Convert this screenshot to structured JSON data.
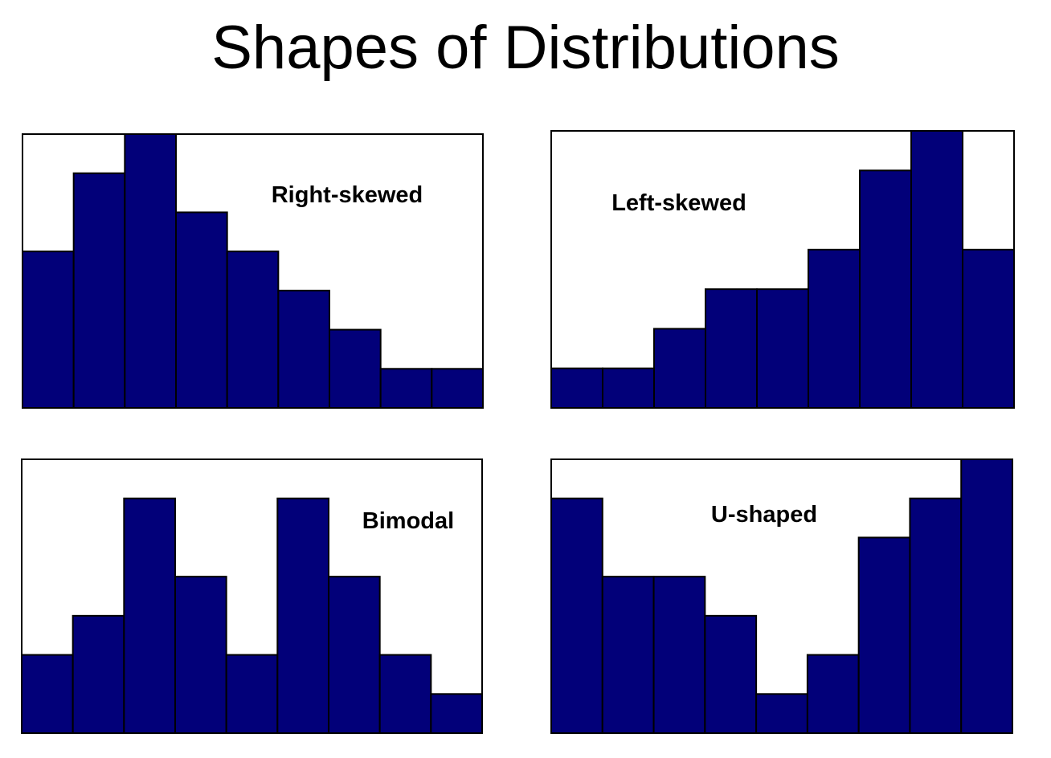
{
  "title": "Shapes of Distributions",
  "colors": {
    "bar_fill": "#020079",
    "bar_stroke": "#000000",
    "frame_stroke": "#000000",
    "background": "#ffffff"
  },
  "chart_data": [
    {
      "type": "bar",
      "label": "Right-skewed",
      "values": [
        4,
        6,
        7,
        5,
        4,
        3,
        2,
        1,
        1
      ],
      "ylim": [
        0,
        7
      ],
      "grid": false,
      "legend": "none"
    },
    {
      "type": "bar",
      "label": "Left-skewed",
      "values": [
        1,
        1,
        2,
        3,
        3,
        4,
        6,
        7,
        4
      ],
      "ylim": [
        0,
        7
      ],
      "grid": false,
      "legend": "none"
    },
    {
      "type": "bar",
      "label": "Bimodal",
      "values": [
        2,
        3,
        6,
        4,
        2,
        6,
        4,
        2,
        1
      ],
      "ylim": [
        0,
        7
      ],
      "grid": false,
      "legend": "none"
    },
    {
      "type": "bar",
      "label": "U-shaped",
      "values": [
        6,
        4,
        4,
        3,
        1,
        2,
        5,
        6,
        7
      ],
      "ylim": [
        0,
        7
      ],
      "grid": false,
      "legend": "none"
    }
  ]
}
